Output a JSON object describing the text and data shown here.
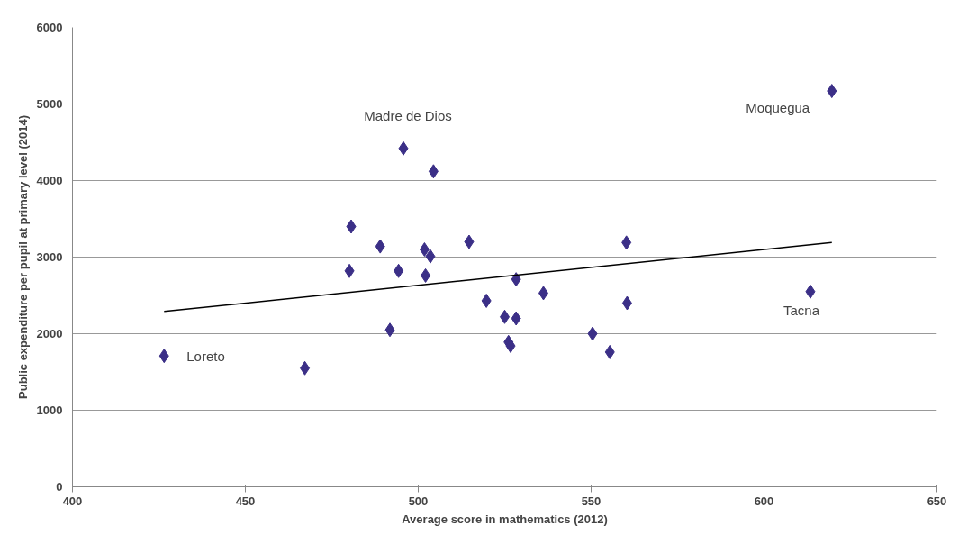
{
  "chart_data": {
    "type": "scatter",
    "xlabel": "Average score in mathematics (2012)",
    "ylabel": "Public expenditure per pupil at primary level (2014)",
    "xlim": [
      400,
      650
    ],
    "xticks": [
      400,
      450,
      500,
      550,
      600,
      650
    ],
    "ylim": [
      0,
      6000
    ],
    "yticks": [
      0,
      1000,
      2000,
      3000,
      4000,
      5000,
      6000
    ],
    "grid": "y",
    "series": [
      {
        "color": "#3b2f87",
        "marker": "diamond",
        "x": [
          426.5,
          467.2,
          480.6,
          480.1,
          489,
          494.3,
          491.8,
          495.7,
          504.4,
          501.8,
          503.5,
          502.1,
          514.7,
          519.7,
          525,
          526.1,
          526.7,
          528.3,
          528.3,
          536.2,
          550.4,
          555.4,
          560.2,
          560.4,
          613.4,
          619.6
        ],
        "values": [
          1710,
          1550,
          3400,
          2820,
          3140,
          2820,
          2050,
          4420,
          4120,
          3100,
          3010,
          2760,
          3200,
          2430,
          2220,
          1890,
          1840,
          2200,
          2710,
          2530,
          2000,
          1760,
          3190,
          2400,
          2550,
          5170
        ]
      },
      {
        "type": "line",
        "color": "#000000",
        "marker": "none",
        "x": [
          426.5,
          619.6
        ],
        "values": [
          2290,
          3190
        ]
      }
    ],
    "annotations": [
      {
        "text": "Loreto",
        "x": 426.5,
        "y": 1710
      },
      {
        "text": "Madre de Dios",
        "x": 495.7,
        "y": 4420
      },
      {
        "text": "Moquegua",
        "x": 619.6,
        "y": 5170
      },
      {
        "text": "Tacna",
        "x": 613.4,
        "y": 2550
      }
    ]
  }
}
